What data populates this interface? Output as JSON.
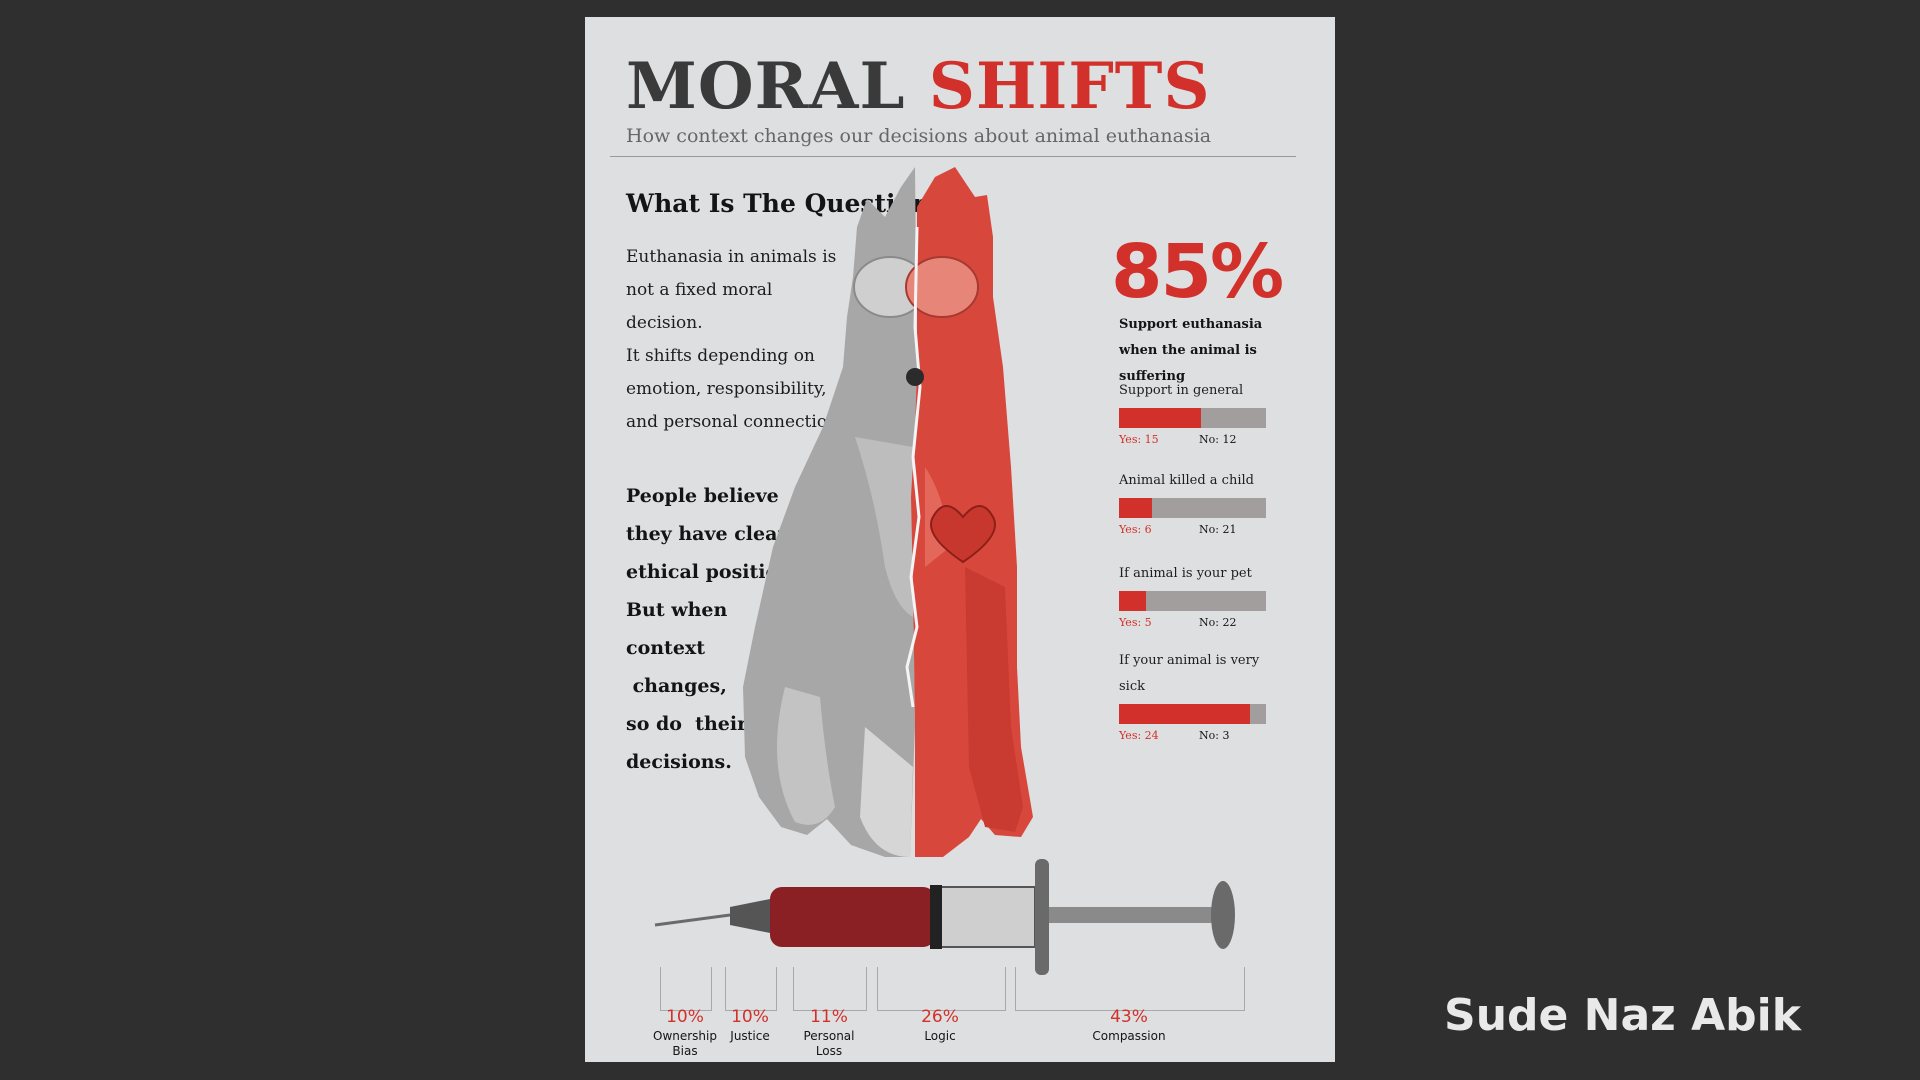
{
  "poster": {
    "title_part1": "MORAL",
    "title_part2": "SHIFTS",
    "subtitle": "How context changes our decisions about animal euthanasia",
    "question_heading": "What Is The Question?",
    "intro_lines": [
      "Euthanasia in animals is",
      "not a fixed moral",
      "decision.",
      "It shifts depending on",
      "emotion, responsibility,",
      "and personal connection."
    ],
    "belief_lines": [
      "People believe",
      "they have clear",
      "ethical positions",
      "But when",
      "context",
      " changes,",
      "so do  their",
      "decisions."
    ],
    "highlight_percent": "85%",
    "highlight_caption": "Support euthanasia when the animal is suffering",
    "bars": [
      {
        "label": "Support in general",
        "yes_label": "Yes: 15",
        "no_label": "No: 12",
        "yes": 15,
        "no": 12
      },
      {
        "label": "Animal killed a child",
        "yes_label": "Yes: 6",
        "no_label": "No: 21",
        "yes": 6,
        "no": 21
      },
      {
        "label": "If animal is your pet",
        "yes_label": "Yes: 5",
        "no_label": "No: 22",
        "yes": 5,
        "no": 22
      },
      {
        "label": "If your animal is very sick",
        "yes_label": "Yes: 24",
        "no_label": "No: 3",
        "yes": 24,
        "no": 3
      }
    ],
    "reasons": [
      {
        "percent": "10%",
        "label": "Ownership Bias"
      },
      {
        "percent": "10%",
        "label": "Justice"
      },
      {
        "percent": "11%",
        "label": "Personal Loss"
      },
      {
        "percent": "26%",
        "label": "Logic"
      },
      {
        "percent": "43%",
        "label": "Compassion"
      }
    ],
    "colors": {
      "accent": "#d2302a",
      "neutral_bar": "#a39e9e",
      "background": "#dedfe0",
      "frame": "#2f2f2f"
    }
  },
  "signature": "Sude Naz Abik"
}
